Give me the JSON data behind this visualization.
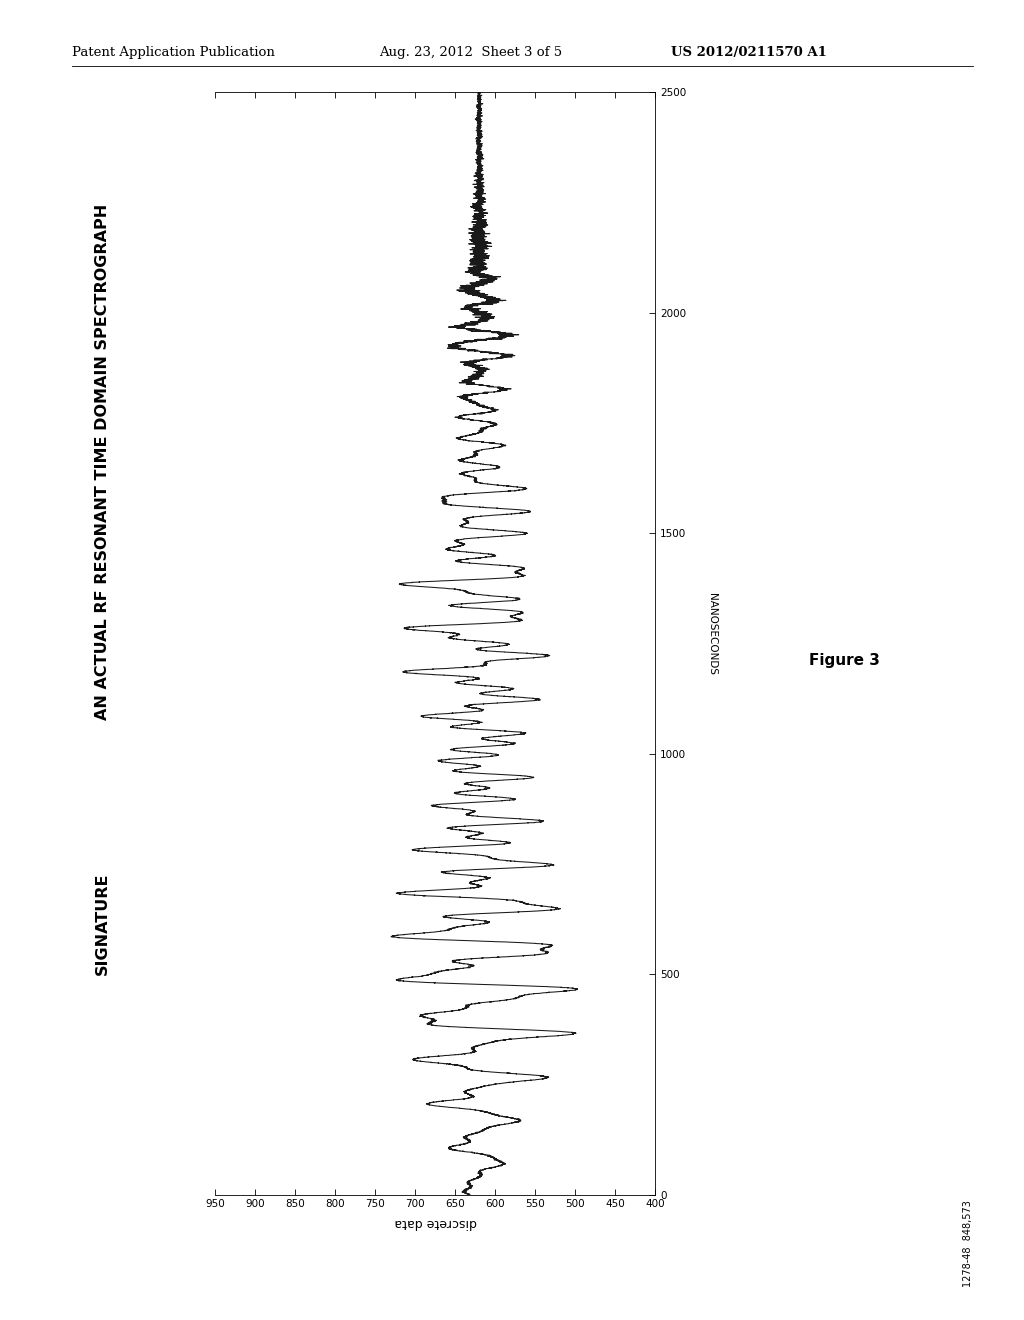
{
  "title_line1": "AN ACTUAL RF RESONANT TIME DOMAIN SPECTROGRAPH",
  "title_line2": "SIGNATURE",
  "xlabel": "discrete data",
  "ylabel": "NANOSECONDS",
  "figure_label": "Figure 3",
  "header_left": "Patent Application Publication",
  "header_center": "Aug. 23, 2012  Sheet 3 of 5",
  "header_right": "US 2012/0211570 A1",
  "footer_label": "1278-48  848,573",
  "x_min": 400,
  "x_max": 950,
  "y_min": 0,
  "y_max": 2500,
  "x_ticks": [
    950,
    900,
    850,
    800,
    750,
    700,
    650,
    600,
    550,
    500,
    450,
    400
  ],
  "y_ticks": [
    0,
    500,
    1000,
    1500,
    2000,
    2500
  ],
  "bg_color": "#ffffff",
  "line_color": "#1a1a1a"
}
